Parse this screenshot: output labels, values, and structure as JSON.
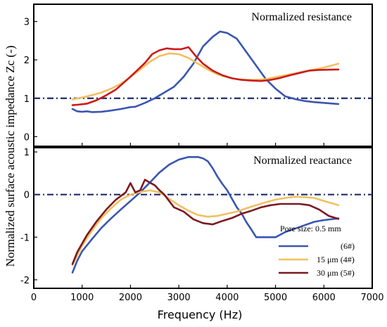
{
  "chart_data": {
    "type": "line",
    "ylabel": "Normalized surface acoustic impedance Zc (-)",
    "xlabel": "Frequency (Hz)",
    "xlim": [
      0,
      7000
    ],
    "xticks": [
      0,
      1000,
      2000,
      3000,
      4000,
      5000,
      6000,
      7000
    ],
    "panels": [
      {
        "title": "Normalized resistance",
        "ylim": [
          -0.25,
          3.45
        ],
        "yticks": [
          0,
          1,
          2,
          3
        ],
        "reference_line": 1.0,
        "series": [
          {
            "color": "#3a56b0",
            "x": [
              800,
              900,
              1000,
              1100,
              1200,
              1400,
              1600,
              1800,
              2000,
              2100,
              2300,
              2500,
              2700,
              2900,
              3100,
              3300,
              3500,
              3700,
              3850,
              4000,
              4200,
              4400,
              4600,
              4800,
              5000,
              5200,
              5400,
              5600,
              5800,
              6000,
              6300
            ],
            "y": [
              0.72,
              0.66,
              0.65,
              0.66,
              0.64,
              0.65,
              0.68,
              0.72,
              0.77,
              0.78,
              0.88,
              1.0,
              1.15,
              1.3,
              1.56,
              1.9,
              2.35,
              2.6,
              2.74,
              2.7,
              2.55,
              2.2,
              1.85,
              1.5,
              1.25,
              1.05,
              0.98,
              0.93,
              0.9,
              0.88,
              0.85
            ]
          },
          {
            "color": "#f0c060",
            "x": [
              800,
              1000,
              1200,
              1400,
              1600,
              1800,
              2000,
              2200,
              2400,
              2600,
              2800,
              3000,
              3200,
              3400,
              3600,
              3800,
              4000,
              4200,
              4400,
              4600,
              4800,
              5000,
              5200,
              5400,
              5600,
              5800,
              6000,
              6300
            ],
            "y": [
              0.97,
              1.02,
              1.08,
              1.15,
              1.25,
              1.38,
              1.55,
              1.75,
              1.95,
              2.1,
              2.17,
              2.15,
              2.05,
              1.9,
              1.75,
              1.62,
              1.55,
              1.5,
              1.48,
              1.48,
              1.5,
              1.55,
              1.6,
              1.65,
              1.7,
              1.75,
              1.8,
              1.9
            ]
          },
          {
            "color": "#cc1a1a",
            "x": [
              800,
              900,
              1100,
              1300,
              1500,
              1700,
              1900,
              2100,
              2300,
              2450,
              2600,
              2750,
              2900,
              3050,
              3200,
              3350,
              3500,
              3700,
              3900,
              4100,
              4300,
              4500,
              4700,
              4900,
              5100,
              5300,
              5500,
              5700,
              5900,
              6300
            ],
            "y": [
              0.82,
              0.83,
              0.86,
              0.95,
              1.08,
              1.23,
              1.45,
              1.68,
              1.92,
              2.15,
              2.25,
              2.3,
              2.28,
              2.28,
              2.33,
              2.1,
              1.9,
              1.72,
              1.6,
              1.52,
              1.48,
              1.46,
              1.45,
              1.48,
              1.53,
              1.6,
              1.66,
              1.72,
              1.74,
              1.75
            ]
          }
        ]
      },
      {
        "title": "Normalized reactance",
        "ylim": [
          -2.2,
          1.1
        ],
        "yticks": [
          -2,
          -1,
          0,
          1
        ],
        "reference_line": 0.0,
        "series": [
          {
            "color": "#3a56b0",
            "x": [
              800,
              900,
              1000,
              1200,
              1400,
              1600,
              1800,
              2000,
              2200,
              2400,
              2600,
              2800,
              3000,
              3200,
              3400,
              3500,
              3600,
              3700,
              3800,
              3900,
              4000,
              4100,
              4200,
              4300,
              4400,
              4500,
              4600,
              4800,
              5000,
              5200,
              5400,
              5600,
              5800,
              6000,
              6300
            ],
            "y": [
              -1.83,
              -1.55,
              -1.33,
              -1.05,
              -0.78,
              -0.56,
              -0.35,
              -0.15,
              0.05,
              0.28,
              0.52,
              0.7,
              0.82,
              0.88,
              0.88,
              0.85,
              0.78,
              0.62,
              0.42,
              0.25,
              0.1,
              -0.1,
              -0.3,
              -0.45,
              -0.65,
              -0.82,
              -1.0,
              -1.0,
              -1.0,
              -0.88,
              -0.8,
              -0.72,
              -0.64,
              -0.6,
              -0.56
            ]
          },
          {
            "color": "#f0c060",
            "x": [
              800,
              1000,
              1200,
              1400,
              1600,
              1800,
              2000,
              2200,
              2400,
              2600,
              2800,
              3000,
              3200,
              3400,
              3600,
              3800,
              4000,
              4200,
              4400,
              4600,
              4800,
              5000,
              5200,
              5400,
              5600,
              5800,
              6000,
              6300
            ],
            "y": [
              -1.65,
              -1.2,
              -0.85,
              -0.55,
              -0.32,
              -0.12,
              0.0,
              0.06,
              0.1,
              0.05,
              -0.1,
              -0.25,
              -0.38,
              -0.48,
              -0.52,
              -0.5,
              -0.45,
              -0.4,
              -0.32,
              -0.25,
              -0.18,
              -0.12,
              -0.08,
              -0.05,
              -0.06,
              -0.08,
              -0.15,
              -0.25
            ]
          },
          {
            "color": "#7a1a22",
            "x": [
              800,
              900,
              1100,
              1300,
              1500,
              1700,
              1900,
              2000,
              2100,
              2200,
              2300,
              2400,
              2500,
              2600,
              2700,
              2800,
              2900,
              3100,
              3300,
              3500,
              3700,
              3900,
              4100,
              4300,
              4500,
              4700,
              4900,
              5100,
              5300,
              5500,
              5700,
              5900,
              6100,
              6300
            ],
            "y": [
              -1.63,
              -1.35,
              -0.95,
              -0.63,
              -0.35,
              -0.12,
              0.05,
              0.27,
              0.05,
              0.1,
              0.35,
              0.28,
              0.22,
              0.1,
              0.0,
              -0.15,
              -0.3,
              -0.4,
              -0.58,
              -0.67,
              -0.7,
              -0.62,
              -0.55,
              -0.45,
              -0.38,
              -0.3,
              -0.25,
              -0.22,
              -0.22,
              -0.22,
              -0.25,
              -0.35,
              -0.5,
              -0.57
            ]
          }
        ]
      }
    ],
    "legend": {
      "title": "Pore size: 0.5 mm",
      "position": "bottom-right of lower panel",
      "entries": [
        {
          "label": "(6#)",
          "color": "#3a56b0"
        },
        {
          "label": "15 μm (4#)",
          "color": "#f0c060"
        },
        {
          "label": "30 μm (5#)",
          "color": "#7a1a22"
        }
      ]
    }
  }
}
